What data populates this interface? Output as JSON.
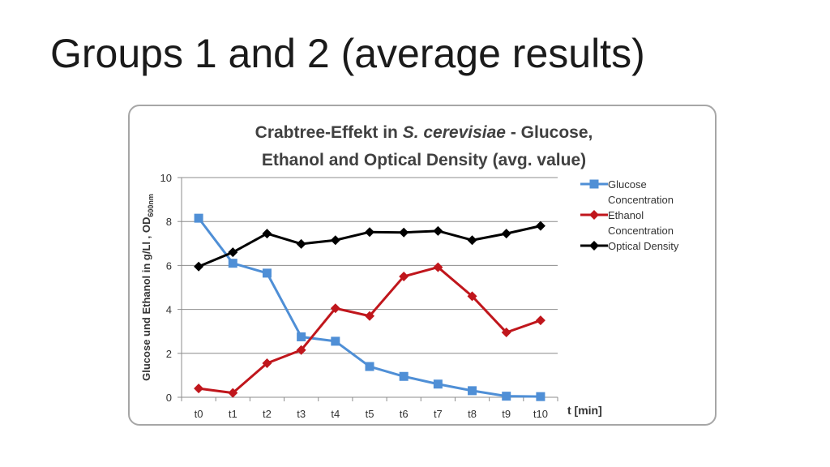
{
  "slide": {
    "title": "Groups 1 and 2 (average results)"
  },
  "chart_data": {
    "type": "line",
    "title_line1": {
      "prefix": "Crabtree-Effekt in ",
      "italic": "S. cerevisiae",
      "suffix": " - Glucose,"
    },
    "title_line2": "Ethanol and Optical Density (avg. value)",
    "xlabel": "t [min]",
    "ylabel": {
      "main": "Glucose und Ethanol in g/Ll , OD",
      "sub": "600nm"
    },
    "ylim": [
      0,
      10
    ],
    "yticks": [
      "0",
      "2",
      "4",
      "6",
      "8",
      "10"
    ],
    "grid": true,
    "legend_position": "right",
    "categories": [
      "t0",
      "t1",
      "t2",
      "t3",
      "t4",
      "t5",
      "t6",
      "t7",
      "t8",
      "t9",
      "t10"
    ],
    "series": [
      {
        "name_lines": [
          "Glucose",
          "Concentration"
        ],
        "color": "#4f8fd6",
        "marker": "square",
        "values": [
          8.15,
          6.1,
          5.65,
          2.75,
          2.55,
          1.4,
          0.95,
          0.6,
          0.3,
          0.05,
          0.03
        ]
      },
      {
        "name_lines": [
          "Ethanol",
          "Concentration"
        ],
        "color": "#c0161c",
        "marker": "diamond",
        "values": [
          0.4,
          0.2,
          1.55,
          2.15,
          4.05,
          3.7,
          5.5,
          5.92,
          4.6,
          2.95,
          3.5
        ]
      },
      {
        "name_lines": [
          "Optical Density"
        ],
        "color": "#000000",
        "marker": "diamond",
        "values": [
          5.95,
          6.6,
          7.45,
          6.98,
          7.15,
          7.52,
          7.5,
          7.57,
          7.15,
          7.45,
          7.8
        ]
      }
    ]
  }
}
